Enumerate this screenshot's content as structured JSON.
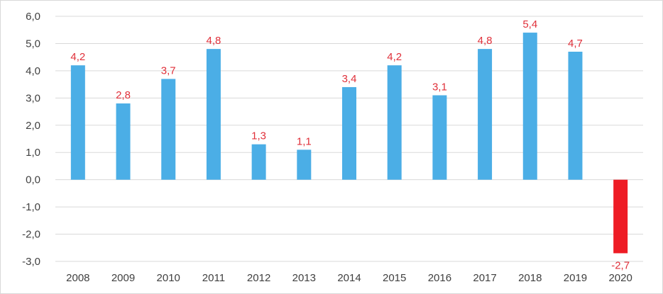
{
  "chart_data": {
    "type": "bar",
    "title": "",
    "xlabel": "",
    "ylabel": "",
    "categories": [
      "2008",
      "2009",
      "2010",
      "2011",
      "2012",
      "2013",
      "2014",
      "2015",
      "2016",
      "2017",
      "2018",
      "2019",
      "2020"
    ],
    "values": [
      4.2,
      2.8,
      3.7,
      4.8,
      1.3,
      1.1,
      3.4,
      4.2,
      3.1,
      4.8,
      5.4,
      4.7,
      -2.7
    ],
    "value_labels": [
      "4,2",
      "2,8",
      "3,7",
      "4,8",
      "1,3",
      "1,1",
      "3,4",
      "4,2",
      "3,1",
      "4,8",
      "5,4",
      "4,7",
      "-2,7"
    ],
    "ylim": [
      -3.0,
      6.0
    ],
    "yticks": [
      6.0,
      5.0,
      4.0,
      3.0,
      2.0,
      1.0,
      0.0,
      -1.0,
      -2.0,
      -3.0
    ],
    "ytick_labels": [
      "6,0",
      "5,0",
      "4,0",
      "3,0",
      "2,0",
      "1,0",
      "0,0",
      "-1,0",
      "-2,0",
      "-3,0"
    ],
    "grid": true,
    "legend": "none",
    "colors": {
      "positive_bar": "#4baee6",
      "negative_bar": "#ee1c25",
      "data_label": "#e0303a",
      "gridline": "#d9d9d9",
      "axis_text": "#404040"
    }
  }
}
